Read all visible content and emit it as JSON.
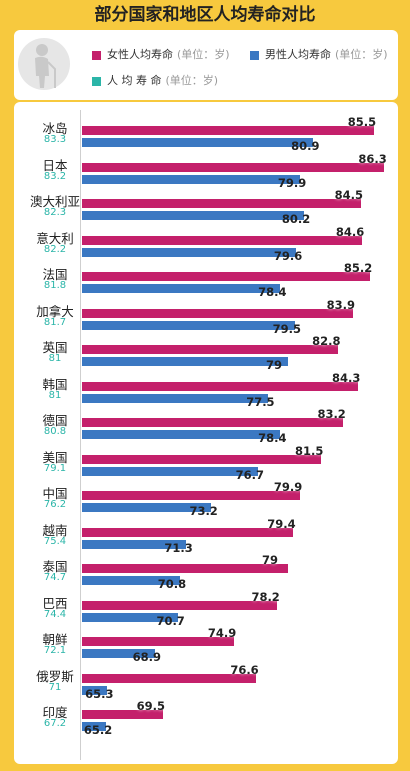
{
  "title": "部分国家和地区人均寿命对比",
  "legend": {
    "female": "女性人均寿命",
    "male": "男性人均寿命",
    "average": "人 均 寿 命",
    "unit": "(单位：岁)"
  },
  "colors": {
    "female": "#c4206b",
    "male": "#3b78c2",
    "average": "#2bb5a8",
    "background": "#f7c93e"
  },
  "icon": "elderly-person-icon",
  "chart_data": {
    "type": "bar",
    "orientation": "horizontal",
    "title": "部分国家和地区人均寿命对比",
    "unit": "岁",
    "categories": [
      "冰岛",
      "日本",
      "澳大利亚",
      "意大利",
      "法国",
      "加拿大",
      "英国",
      "韩国",
      "德国",
      "美国",
      "中国",
      "越南",
      "泰国",
      "巴西",
      "朝鲜",
      "俄罗斯",
      "印度"
    ],
    "series": [
      {
        "name": "女性人均寿命",
        "values": [
          85.5,
          86.3,
          84.5,
          84.6,
          85.2,
          83.9,
          82.8,
          84.3,
          83.2,
          81.5,
          79.9,
          79.4,
          79,
          78.2,
          74.9,
          76.6,
          69.5
        ]
      },
      {
        "name": "男性人均寿命",
        "values": [
          80.9,
          79.9,
          80.2,
          79.6,
          78.4,
          79.5,
          79,
          77.5,
          78.4,
          76.7,
          73.2,
          71.3,
          70.8,
          70.7,
          68.9,
          65.3,
          65.2
        ]
      }
    ],
    "average": {
      "name": "人均寿命",
      "values": [
        "83.3",
        "83.2",
        "82.3",
        "82.2",
        "81.8",
        "81.7",
        "81",
        "81",
        "80.8",
        "79.1",
        "76.2",
        "75.4",
        "74.7",
        "74.4",
        "72.1",
        "71",
        "67.2"
      ]
    }
  }
}
